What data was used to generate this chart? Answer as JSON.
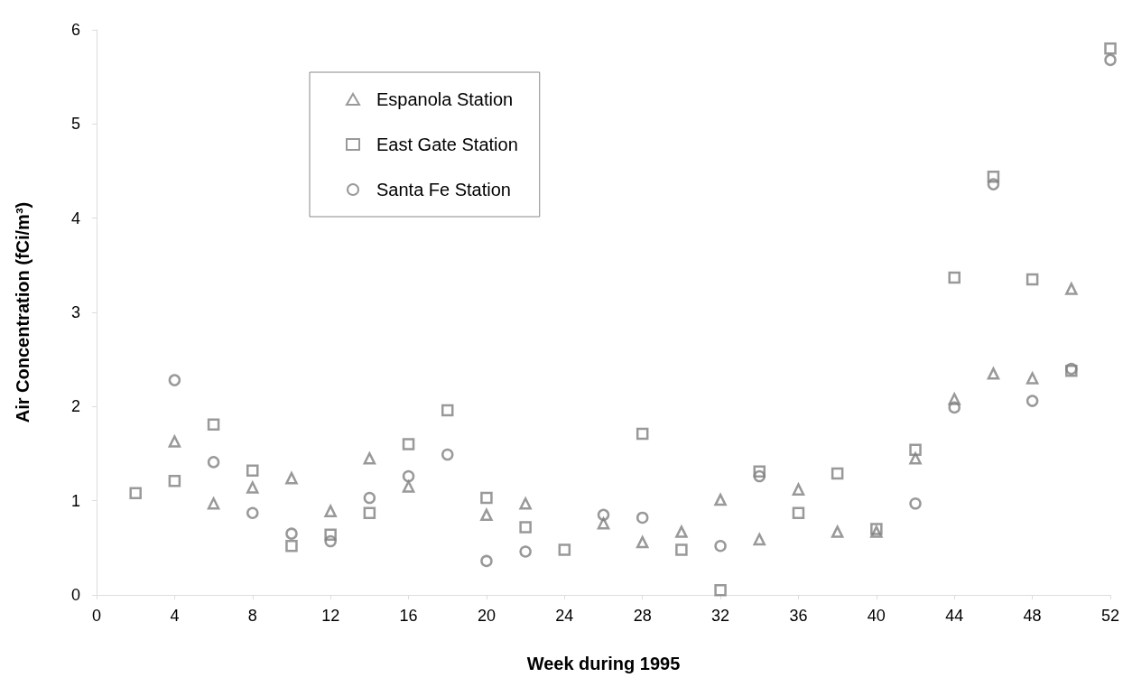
{
  "chart_data": {
    "type": "scatter",
    "xlabel": "Week during 1995",
    "ylabel": "Air Concentration (fCi/m³)",
    "xlim": [
      0,
      52
    ],
    "xticks": [
      0,
      4,
      8,
      12,
      16,
      20,
      24,
      28,
      32,
      36,
      40,
      44,
      48,
      52
    ],
    "ylim": [
      0,
      6
    ],
    "yticks": [
      0,
      1,
      2,
      3,
      4,
      5,
      6
    ],
    "grid": false,
    "legend": "top left",
    "series": [
      {
        "name": "Espanola Station",
        "color": "#808080",
        "marker": "triangle",
        "x": [
          4,
          6,
          8,
          10,
          12,
          14,
          16,
          20,
          22,
          26,
          28,
          30,
          32,
          34,
          36,
          38,
          40,
          42,
          44,
          46,
          48,
          50
        ],
        "values": [
          1.63,
          0.97,
          1.14,
          1.24,
          0.89,
          1.45,
          1.15,
          0.85,
          0.97,
          0.76,
          0.56,
          0.67,
          1.01,
          0.59,
          1.12,
          0.67,
          0.67,
          1.45,
          2.08,
          2.35,
          2.3,
          3.25
        ]
      },
      {
        "name": "East Gate Station",
        "color": "#808080",
        "marker": "square",
        "x": [
          2,
          4,
          6,
          8,
          10,
          12,
          14,
          16,
          18,
          20,
          22,
          24,
          28,
          30,
          32,
          34,
          36,
          38,
          40,
          42,
          44,
          46,
          48,
          50,
          52
        ],
        "values": [
          1.08,
          1.21,
          1.81,
          1.32,
          0.52,
          0.64,
          0.87,
          1.6,
          1.96,
          1.03,
          0.72,
          0.48,
          1.71,
          0.48,
          0.05,
          1.31,
          0.87,
          1.29,
          0.7,
          1.54,
          3.37,
          4.44,
          3.35,
          2.38,
          5.8
        ]
      },
      {
        "name": "Santa Fe Station",
        "color": "#808080",
        "marker": "circle",
        "x": [
          4,
          6,
          8,
          10,
          12,
          14,
          16,
          18,
          20,
          22,
          26,
          28,
          32,
          34,
          42,
          44,
          46,
          48,
          50,
          52
        ],
        "values": [
          2.28,
          1.41,
          0.87,
          0.65,
          0.57,
          1.03,
          1.26,
          1.49,
          0.36,
          0.46,
          0.85,
          0.82,
          0.52,
          1.26,
          0.97,
          1.99,
          4.36,
          2.06,
          2.4,
          5.68
        ]
      }
    ]
  }
}
